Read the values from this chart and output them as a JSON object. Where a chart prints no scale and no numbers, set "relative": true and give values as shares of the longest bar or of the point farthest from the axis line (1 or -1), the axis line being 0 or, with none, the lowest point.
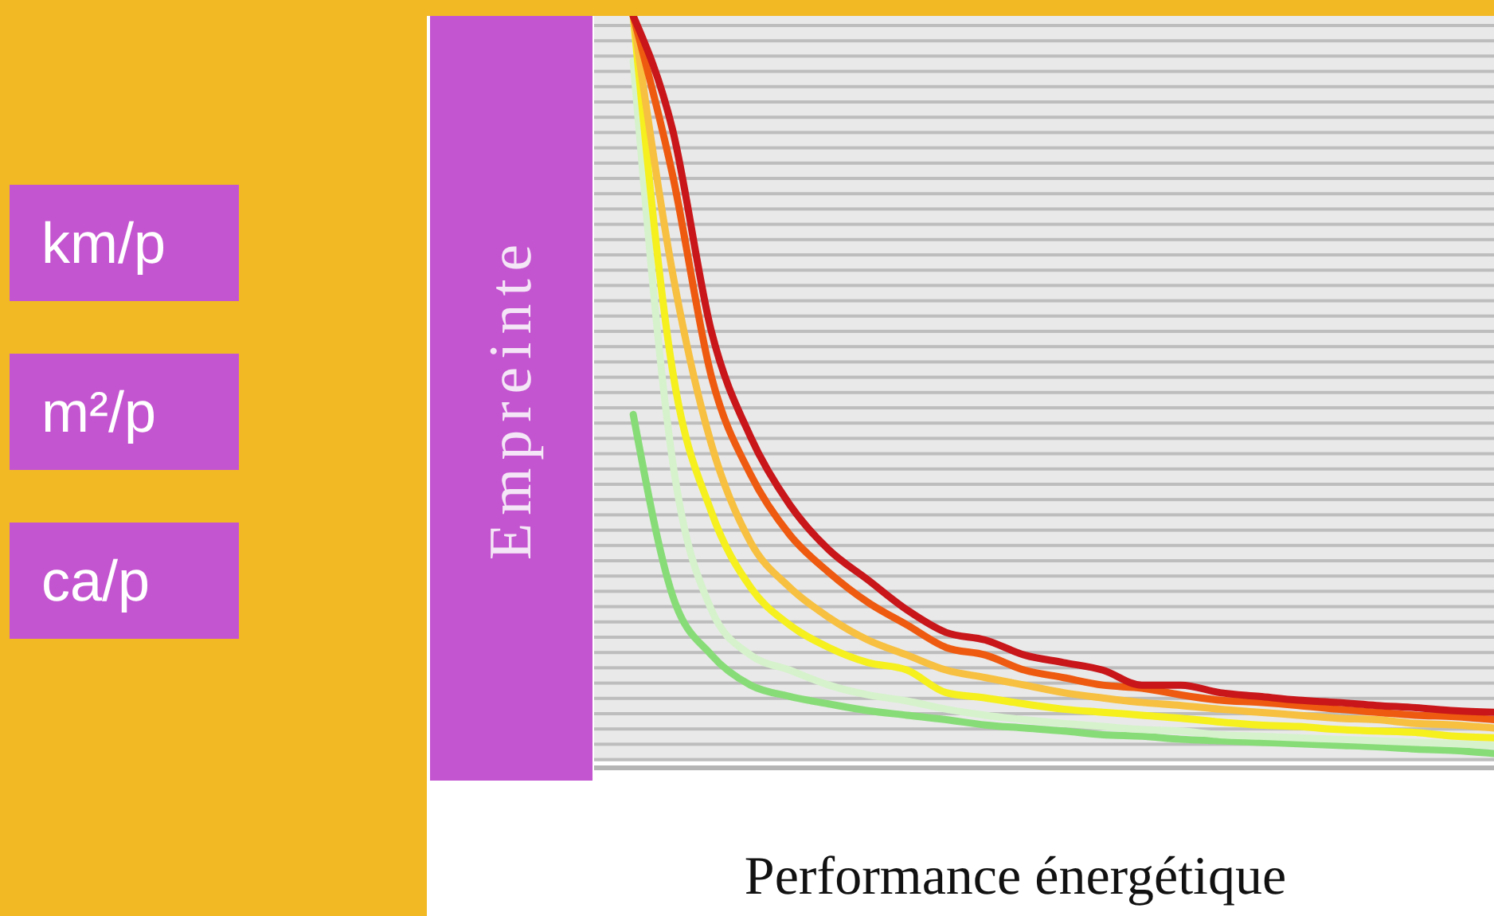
{
  "chart_data": {
    "type": "line",
    "relative": true,
    "ylabel": "Empreinte",
    "xlabel": "Performance énergétique",
    "annotations": [
      "km/p",
      "m²/p",
      "ca/p"
    ],
    "legend": false,
    "marker": "none",
    "line_style": "solid",
    "categories": [
      null,
      null,
      null,
      null,
      null,
      null,
      null,
      null,
      null,
      null,
      null,
      null,
      null,
      null,
      null,
      null,
      null,
      null,
      null,
      null,
      null,
      null,
      null,
      null
    ],
    "series": [
      {
        "color": "#88dc78",
        "values": [
          null,
          0.47,
          0.23,
          0.15,
          0.11,
          0.095,
          0.085,
          0.076,
          0.07,
          0.064,
          0.057,
          0.053,
          0.049,
          0.044,
          0.042,
          0.038,
          0.036,
          0.034,
          0.032,
          0.03,
          0.028,
          0.025,
          0.023,
          0.019
        ]
      },
      {
        "color": "#d6f2cc",
        "values": [
          null,
          0.94,
          0.41,
          0.21,
          0.15,
          0.13,
          0.11,
          0.097,
          0.089,
          0.078,
          0.07,
          0.064,
          0.059,
          0.055,
          0.051,
          0.049,
          0.044,
          0.042,
          0.04,
          0.038,
          0.036,
          0.034,
          0.032,
          0.03
        ]
      },
      {
        "color": "#f5f01e",
        "values": [
          null,
          1,
          0.53,
          0.34,
          0.24,
          0.19,
          0.16,
          0.14,
          0.13,
          0.1,
          0.093,
          0.085,
          0.078,
          0.074,
          0.07,
          0.066,
          0.061,
          0.057,
          0.055,
          0.051,
          0.049,
          0.047,
          0.042,
          0.04
        ]
      },
      {
        "color": "#f7c040",
        "values": [
          null,
          1,
          0.66,
          0.43,
          0.3,
          0.24,
          0.2,
          0.17,
          0.15,
          0.13,
          0.12,
          0.11,
          0.1,
          0.093,
          0.087,
          0.083,
          0.078,
          0.074,
          0.07,
          0.066,
          0.064,
          0.059,
          0.057,
          0.053
        ]
      },
      {
        "color": "#ee5a10",
        "values": [
          null,
          1,
          0.79,
          0.52,
          0.39,
          0.31,
          0.26,
          0.22,
          0.19,
          0.16,
          0.15,
          0.13,
          0.12,
          0.11,
          0.106,
          0.097,
          0.09,
          0.087,
          0.083,
          0.078,
          0.074,
          0.07,
          0.068,
          0.064
        ]
      },
      {
        "color": "#c8161a",
        "values": [
          null,
          1,
          0.85,
          0.58,
          0.44,
          0.35,
          0.29,
          0.25,
          0.21,
          0.18,
          0.17,
          0.15,
          0.14,
          0.13,
          0.11,
          0.11,
          0.1,
          0.095,
          0.09,
          0.087,
          0.083,
          0.08,
          0.076,
          0.074
        ]
      }
    ]
  }
}
